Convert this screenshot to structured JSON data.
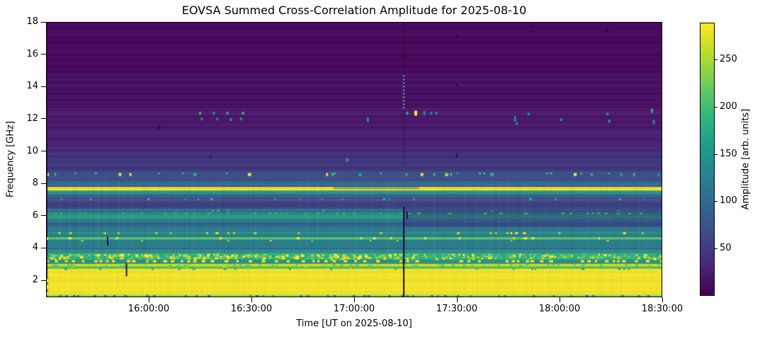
{
  "chart_data": {
    "type": "heatmap",
    "title": "EOVSA Summed Cross-Correlation Amplitude for 2025-08-10",
    "xlabel": "Time [UT on 2025-08-10]",
    "ylabel": "Frequency [GHz]",
    "colorbar_label": "Amplitude [arb. units]",
    "x_start": "15:30:00",
    "x_end": "18:30:00",
    "x_ticks": [
      "16:00:00",
      "16:30:00",
      "17:00:00",
      "17:30:00",
      "18:00:00",
      "18:30:00"
    ],
    "y_range": [
      0.95,
      18
    ],
    "y_ticks": [
      2,
      4,
      6,
      8,
      10,
      12,
      14,
      16,
      18
    ],
    "colorbar": {
      "vmin": 0,
      "vmax": 289,
      "ticks": [
        50,
        100,
        150,
        200,
        250
      ],
      "colormap": "viridis"
    },
    "viridis_stops": [
      "#440154",
      "#482878",
      "#3e4a89",
      "#31688e",
      "#26828e",
      "#1f9e89",
      "#35b779",
      "#6ece58",
      "#b5de2b",
      "#fde725"
    ],
    "bands": [
      [
        18.0,
        14.8,
        "#45065a"
      ],
      [
        14.8,
        12.6,
        "#470d61"
      ],
      [
        12.6,
        11.4,
        "#481468"
      ],
      [
        11.4,
        10.4,
        "#471b6e"
      ],
      [
        10.4,
        9.95,
        "#452373"
      ],
      [
        9.95,
        9.55,
        "#422c78"
      ],
      [
        9.55,
        9.15,
        "#40387e"
      ],
      [
        9.15,
        8.9,
        "#413078"
      ],
      [
        8.9,
        8.7,
        "#3d4282"
      ],
      [
        8.7,
        8.4,
        "#3a4e87"
      ],
      [
        8.4,
        8.15,
        "#3c4684"
      ],
      [
        8.15,
        7.95,
        "#2e6c8e"
      ],
      [
        7.95,
        7.78,
        "#366390"
      ],
      [
        7.78,
        7.56,
        "#f1e11c"
      ],
      [
        7.56,
        7.33,
        "#27948b"
      ],
      [
        7.33,
        7.1,
        "#395a8c"
      ],
      [
        7.1,
        6.95,
        "#3b5089"
      ],
      [
        6.95,
        6.7,
        "#3f4886"
      ],
      [
        6.7,
        6.42,
        "#3b3e80"
      ],
      [
        6.42,
        6.22,
        "#2f6e8e"
      ],
      [
        6.22,
        6.05,
        "#27888b"
      ],
      [
        6.05,
        5.82,
        "#2aa07e"
      ],
      [
        5.82,
        5.62,
        "#2b808e"
      ],
      [
        5.62,
        5.35,
        "#30698e"
      ],
      [
        5.35,
        5.0,
        "#2d778e"
      ],
      [
        5.0,
        4.83,
        "#279489"
      ],
      [
        4.83,
        4.68,
        "#2d778e"
      ],
      [
        4.68,
        4.52,
        "#55c667"
      ],
      [
        4.52,
        4.05,
        "#2a808c"
      ],
      [
        4.05,
        3.9,
        "#32698e"
      ],
      [
        3.9,
        3.66,
        "#27918a"
      ],
      [
        3.66,
        3.3,
        "#35b377"
      ],
      [
        3.3,
        3.02,
        "#27918a"
      ],
      [
        3.02,
        2.86,
        "#dce218"
      ],
      [
        2.86,
        2.72,
        "#46c06e"
      ],
      [
        2.72,
        1.1,
        "#fde725"
      ],
      [
        1.1,
        0.95,
        "#90d743"
      ]
    ],
    "overlays": [
      {
        "t0": "17:14:30",
        "t1": "18:30:00",
        "f_hi": 6.48,
        "f_lo": 5.3,
        "color": "#3b2f7a",
        "alpha": 0.45
      },
      {
        "t0": "16:54:00",
        "t1": "17:19:00",
        "f_hi": 7.8,
        "f_lo": 7.64,
        "color": "#31688e",
        "alpha": 0.45
      }
    ],
    "speckle_rows": [
      {
        "f": 8.55,
        "h": 4,
        "density": 0.12,
        "colors": [
          "#35b779",
          "#22a884",
          "#fde725"
        ],
        "wmin": 2,
        "wmax": 5
      },
      {
        "f": 8.62,
        "h": 3,
        "density": 0.06,
        "colors": [
          "#2ab07e"
        ],
        "wmin": 2,
        "wmax": 4
      },
      {
        "f": 7.02,
        "h": 3,
        "density": 0.08,
        "colors": [
          "#2fb47c",
          "#26828e"
        ],
        "wmin": 2,
        "wmax": 4
      },
      {
        "f": 6.3,
        "h": 3,
        "density": 0.07,
        "colors": [
          "#2ab07e",
          "#26828e"
        ],
        "wmin": 2,
        "wmax": 4
      },
      {
        "f": 6.14,
        "h": 2,
        "density": 0.3,
        "colors": [
          "#35b779"
        ],
        "wmin": 3,
        "wmax": 6
      },
      {
        "f": 4.92,
        "h": 3,
        "density": 0.16,
        "colors": [
          "#fde725",
          "#addc30"
        ],
        "wmin": 2,
        "wmax": 4
      },
      {
        "f": 4.6,
        "h": 3,
        "density": 0.12,
        "colors": [
          "#fde725"
        ],
        "wmin": 2,
        "wmax": 5
      },
      {
        "f": 4.45,
        "h": 2,
        "density": 0.1,
        "colors": [
          "#addc30"
        ],
        "wmin": 2,
        "wmax": 4
      },
      {
        "f": 3.18,
        "h": 3,
        "density": 0.45,
        "colors": [
          "#fde725"
        ],
        "wmin": 3,
        "wmax": 6
      },
      {
        "f": 2.7,
        "h": 3,
        "density": 0.15,
        "colors": [
          "#35b779",
          "#22a884"
        ],
        "wmin": 2,
        "wmax": 4
      },
      {
        "f": 1.02,
        "h": 3,
        "density": 0.35,
        "colors": [
          "#2a788e",
          "#21918c"
        ],
        "wmin": 2,
        "wmax": 5
      }
    ],
    "texture_bands": [
      {
        "f_hi": 3.66,
        "f_lo": 3.3,
        "density": 0.6,
        "colors": [
          "#fde725",
          "#addc30",
          "#5ec962",
          "#22a884"
        ]
      },
      {
        "f_hi": 3.02,
        "f_lo": 2.86,
        "density": 0.3,
        "colors": [
          "#addc30",
          "#5ec962"
        ]
      }
    ],
    "bottom_rows": [
      {
        "f": 2.55,
        "a": 0.1
      },
      {
        "f": 2.3,
        "a": 0.08
      },
      {
        "f": 2.05,
        "a": 0.12
      },
      {
        "f": 1.9,
        "a": 0.1
      },
      {
        "f": 1.6,
        "a": 0.07
      },
      {
        "f": 1.3,
        "a": 0.1
      },
      {
        "f": 1.15,
        "a": 0.14
      }
    ],
    "bottom_row_color": "#6cc863",
    "vertical_line": {
      "t": "17:14:30",
      "color": "#200640",
      "segments": [
        {
          "f_hi": 18.0,
          "f_lo": 9.05,
          "w": 1,
          "alpha": 0.5
        },
        {
          "f_hi": 6.55,
          "f_lo": 0.95,
          "w": 2,
          "alpha": 1.0
        }
      ]
    },
    "dotted_column": {
      "t": "17:14:30",
      "f_hi": 14.7,
      "f_lo": 12.55,
      "color": "#52d0c5"
    },
    "dark_ticks": [
      {
        "t": "16:03:00",
        "f_hi": 11.62,
        "f_lo": 11.3
      },
      {
        "t": "16:18:00",
        "f_hi": 9.75,
        "f_lo": 9.55
      },
      {
        "t": "15:48:00",
        "f_hi": 4.7,
        "f_lo": 4.15
      },
      {
        "t": "15:53:30",
        "f_hi": 3.05,
        "f_lo": 2.25
      },
      {
        "t": "17:30:00",
        "f_hi": 17.25,
        "f_lo": 16.95
      },
      {
        "t": "17:30:00",
        "f_hi": 14.2,
        "f_lo": 14.0
      },
      {
        "t": "17:30:00",
        "f_hi": 9.85,
        "f_lo": 9.6
      },
      {
        "t": "17:52:00",
        "f_hi": 17.85,
        "f_lo": 17.6
      },
      {
        "t": "18:14:00",
        "f_hi": 17.6,
        "f_lo": 17.4
      },
      {
        "t": "17:15:30",
        "f_hi": 6.25,
        "f_lo": 5.8
      }
    ],
    "dark_tick_color": "#2d0a4e",
    "rfi_dashes": [
      {
        "t": "16:15:00",
        "f": 12.35,
        "color": "#35b779"
      },
      {
        "t": "16:19:00",
        "f": 12.35,
        "color": "#21918c"
      },
      {
        "t": "16:23:00",
        "f": 12.35,
        "color": "#2ab07e"
      },
      {
        "t": "16:27:30",
        "f": 12.35,
        "color": "#40bd72"
      },
      {
        "t": "17:15:30",
        "f": 12.35,
        "color": "#2fb47c"
      },
      {
        "t": "17:18:00",
        "f": 12.35,
        "color": "#fde725",
        "w": 4,
        "h": 7
      },
      {
        "t": "17:20:30",
        "f": 12.35,
        "color": "#21918c",
        "h": 6
      },
      {
        "t": "17:22:30",
        "f": 12.35,
        "color": "#21918c"
      },
      {
        "t": "17:24:00",
        "f": 12.35,
        "color": "#21918c"
      },
      {
        "t": "17:51:00",
        "f": 12.3,
        "color": "#21918c"
      },
      {
        "t": "18:14:00",
        "f": 12.3,
        "color": "#21918c"
      },
      {
        "t": "18:27:00",
        "f": 12.5,
        "color": "#35b779",
        "h": 6
      },
      {
        "t": "16:15:30",
        "f": 12.0,
        "color": "#21918c"
      },
      {
        "t": "16:20:00",
        "f": 12.0,
        "color": "#26828e"
      },
      {
        "t": "16:24:00",
        "f": 11.95,
        "color": "#21918c"
      },
      {
        "t": "16:27:00",
        "f": 12.0,
        "color": "#21918c"
      },
      {
        "t": "17:04:00",
        "f": 11.95,
        "color": "#21918c",
        "h": 6
      },
      {
        "t": "17:47:00",
        "f": 12.0,
        "color": "#21918c",
        "h": 8
      },
      {
        "t": "17:47:30",
        "f": 11.7,
        "color": "#21918c"
      },
      {
        "t": "18:00:30",
        "f": 11.95,
        "color": "#21918c"
      },
      {
        "t": "18:27:30",
        "f": 11.8,
        "color": "#21918c",
        "h": 6
      },
      {
        "t": "18:14:30",
        "f": 11.85,
        "color": "#2a9d8f"
      },
      {
        "t": "16:58:00",
        "f": 9.45,
        "color": "#30a184",
        "h": 5
      }
    ],
    "edge_artifacts": {
      "column_color": "#440154",
      "column_f_lo": 2.2,
      "blips": [
        {
          "f_hi": 4.66,
          "f_lo": 4.5,
          "color": "#fde725"
        },
        {
          "f_hi": 2.2,
          "f_lo": 2.06,
          "color": "#2a788e"
        },
        {
          "f_hi": 2.06,
          "f_lo": 1.92,
          "color": "#fde725"
        },
        {
          "f_hi": 1.88,
          "f_lo": 1.72,
          "color": "#26828e"
        },
        {
          "f_hi": 1.66,
          "f_lo": 1.5,
          "color": "#fde725"
        },
        {
          "f_hi": 1.46,
          "f_lo": 1.26,
          "color": "#1f9e89"
        }
      ]
    }
  }
}
